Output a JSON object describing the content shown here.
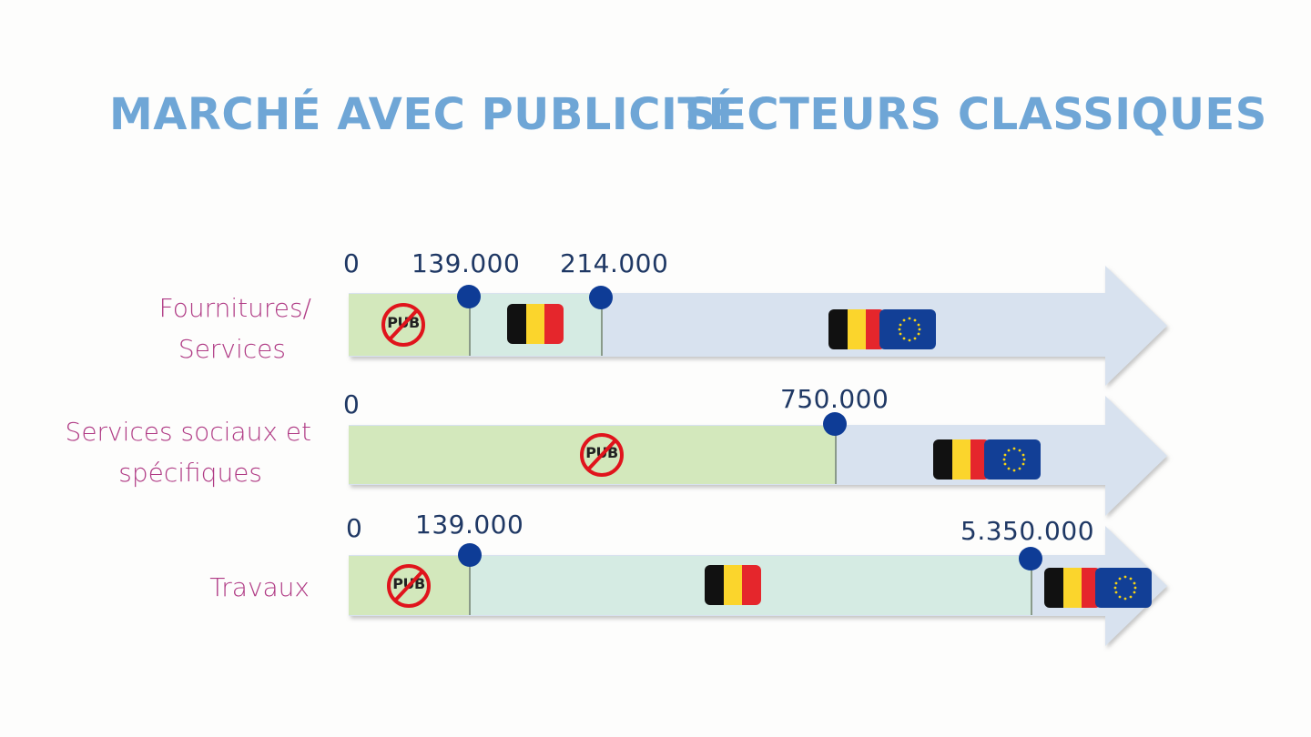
{
  "title": {
    "part1": "MARCHÉ AVEC PUBLICITÉ",
    "part2": "SECTEURS CLASSIQUES"
  },
  "rows": [
    {
      "label_line1": "Fournitures/",
      "label_line2": "Services",
      "start": "0",
      "thresholds": [
        "139.000",
        "214.000"
      ]
    },
    {
      "label_line1": "Services sociaux et",
      "label_line2": "spécifiques",
      "start": "0",
      "thresholds": [
        "750.000"
      ]
    },
    {
      "label_line1": "Travaux",
      "start": "0",
      "thresholds": [
        "139.000",
        "5.350.000"
      ]
    }
  ],
  "badge_text": "PUB",
  "colors": {
    "title": "#6fa6d6",
    "row_label": "#b03b85",
    "threshold_text": "#1f3864",
    "dot": "#0e3c96",
    "zone_no_pub": "#d3e8bc",
    "zone_national": "#d5ebe3",
    "zone_european": "#d8e2ef",
    "nopub_sign": "#e0141c"
  },
  "icons": [
    "no-pub-sign-icon",
    "belgium-flag-icon",
    "eu-flag-icon"
  ]
}
